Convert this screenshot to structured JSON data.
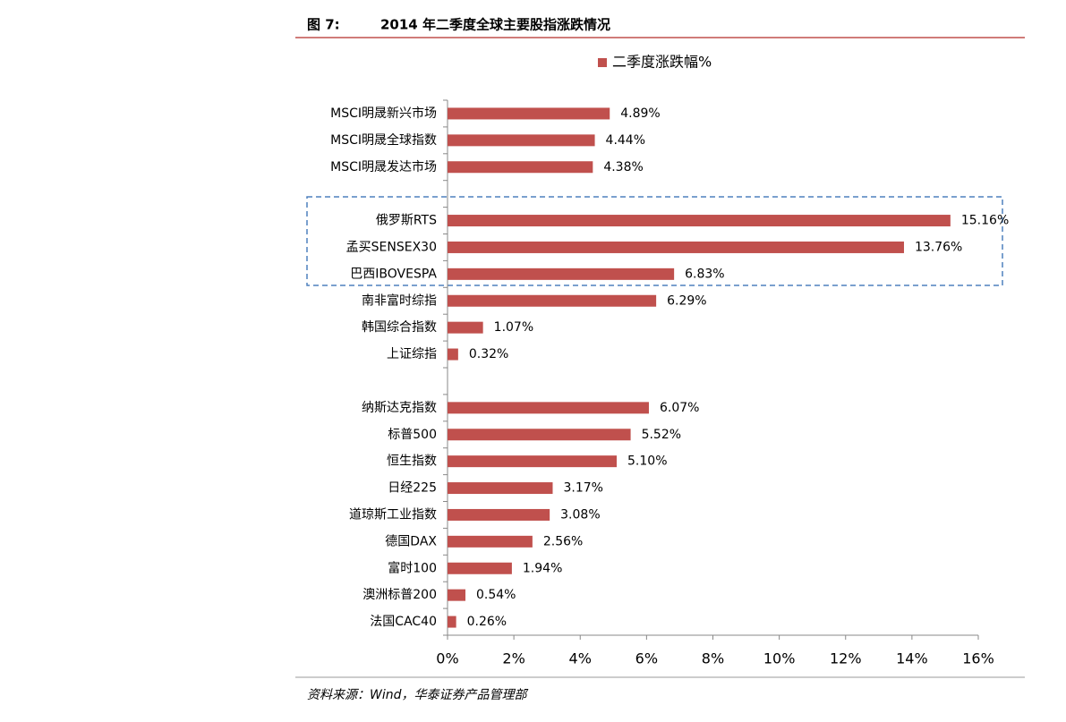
{
  "chart_data": {
    "type": "barh",
    "figure_label": "图 7:",
    "title": "2014 年二季度全球主要股指涨跌情况",
    "source": "资料来源：Wind，华泰证券产品管理部",
    "categories": [
      "MSCI明晟新兴市场",
      "MSCI明晟全球指数",
      "MSCI明晟发达市场",
      null,
      "俄罗斯RTS",
      "孟买SENSEX30",
      "巴西IBOVESPA",
      "南非富时综指",
      "韩国综合指数",
      "上证综指",
      null,
      "纳斯达克指数",
      "标普500",
      "恒生指数",
      "日经225",
      "道琼斯工业指数",
      "德国DAX",
      "富时100",
      "澳洲标普200",
      "法国CAC40"
    ],
    "series": [
      {
        "name": "二季度涨跌幅%",
        "color": "#c0504d",
        "values": [
          4.89,
          4.44,
          4.38,
          null,
          15.16,
          13.76,
          6.83,
          6.29,
          1.07,
          0.32,
          null,
          6.07,
          5.52,
          5.1,
          3.17,
          3.08,
          2.56,
          1.94,
          0.54,
          0.26
        ],
        "value_labels": [
          "4.89%",
          "4.44%",
          "4.38%",
          null,
          "15.16%",
          "13.76%",
          "6.83%",
          "6.29%",
          "1.07%",
          "0.32%",
          null,
          "6.07%",
          "5.52%",
          "5.10%",
          "3.17%",
          "3.08%",
          "2.56%",
          "1.94%",
          "0.54%",
          "0.26%"
        ]
      }
    ],
    "xlim": [
      0,
      16
    ],
    "xticks": [
      {
        "value": 0,
        "label": "0%"
      },
      {
        "value": 2,
        "label": "2%"
      },
      {
        "value": 4,
        "label": "4%"
      },
      {
        "value": 6,
        "label": "6%"
      },
      {
        "value": 8,
        "label": "8%"
      },
      {
        "value": 10,
        "label": "10%"
      },
      {
        "value": 12,
        "label": "12%"
      },
      {
        "value": 14,
        "label": "14%"
      },
      {
        "value": 16,
        "label": "16%"
      }
    ],
    "legend": "top"
  }
}
